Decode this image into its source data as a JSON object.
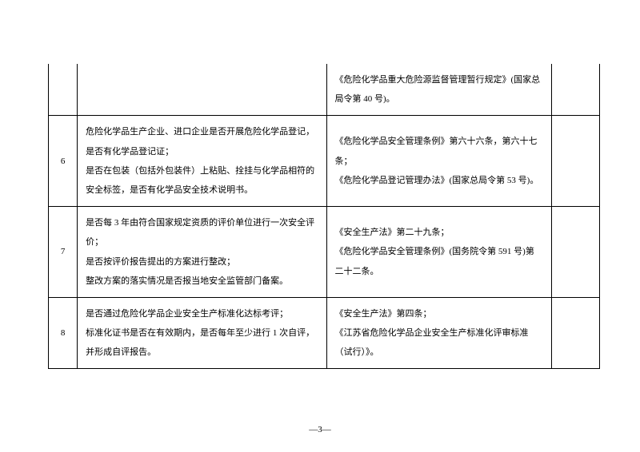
{
  "rows": [
    {
      "num": "",
      "content": "",
      "basis": "《危险化学品重大危险源监督管理暂行规定》(国家总局令第 40 号)。",
      "note": "",
      "noTop": true
    },
    {
      "num": "6",
      "content": "危险化学品生产企业、进口企业是否开展危险化学品登记，是否有化学品登记证；\n是否在包装（包括外包装件）上粘贴、拴挂与化学品相符的安全标签，是否有化学品安全技术说明书。",
      "basis": "《危险化学品安全管理条例》第六十六条，第六十七条；\n《危险化学品登记管理办法》(国家总局令第 53 号)。",
      "note": ""
    },
    {
      "num": "7",
      "content": "是否每 3 年由符合国家规定资质的评价单位进行一次安全评价；\n是否按评价报告提出的方案进行整改；\n整改方案的落实情况是否报当地安全监管部门备案。",
      "basis": "《安全生产法》第二十九条；\n《危险化学品安全管理条例》(国务院令第 591 号)第二十二条。",
      "note": ""
    },
    {
      "num": "8",
      "content": "是否通过危险化学品企业安全生产标准化达标考评；\n标准化证书是否在有效期内，是否每年至少进行 1 次自评，并形成自评报告。",
      "basis": "《安全生产法》第四条；\n《江苏省危险化学品企业安全生产标准化评审标准（试行）》。",
      "note": ""
    }
  ],
  "pageNumber": "—3—"
}
